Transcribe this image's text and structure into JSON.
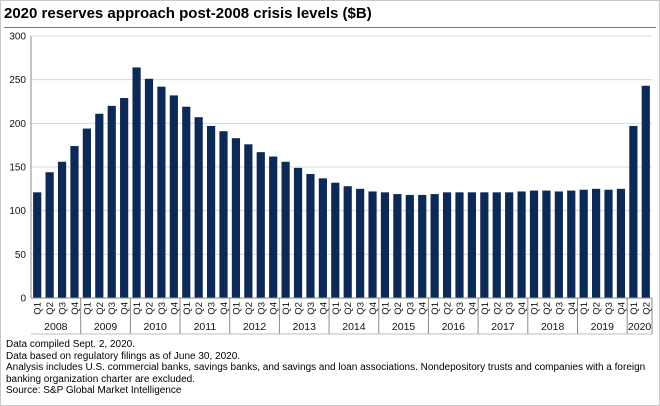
{
  "colors": {
    "bar": "#0d2a57",
    "grid": "#d8d8d8",
    "axis": "#8a8a8a",
    "text": "#111111",
    "border": "#c8c8c8"
  },
  "chart_data": {
    "type": "bar",
    "title": "2020 reserves approach post-2008 crisis levels ($B)",
    "xlabel": "",
    "ylabel": "",
    "ylim": [
      0,
      300
    ],
    "yticks": [
      0,
      50,
      100,
      150,
      200,
      250,
      300
    ],
    "grid": true,
    "legend": "none",
    "categories": [
      "Q1",
      "Q2",
      "Q3",
      "Q4",
      "Q1",
      "Q2",
      "Q3",
      "Q4",
      "Q1",
      "Q2",
      "Q3",
      "Q4",
      "Q1",
      "Q2",
      "Q3",
      "Q4",
      "Q1",
      "Q2",
      "Q3",
      "Q4",
      "Q1",
      "Q2",
      "Q3",
      "Q4",
      "Q1",
      "Q2",
      "Q3",
      "Q4",
      "Q1",
      "Q2",
      "Q3",
      "Q4",
      "Q1",
      "Q2",
      "Q3",
      "Q4",
      "Q1",
      "Q2",
      "Q3",
      "Q4",
      "Q1",
      "Q2",
      "Q3",
      "Q4",
      "Q1",
      "Q2",
      "Q3",
      "Q4",
      "Q1",
      "Q2"
    ],
    "years": [
      {
        "label": "2008",
        "count": 4
      },
      {
        "label": "2009",
        "count": 4
      },
      {
        "label": "2010",
        "count": 4
      },
      {
        "label": "2011",
        "count": 4
      },
      {
        "label": "2012",
        "count": 4
      },
      {
        "label": "2013",
        "count": 4
      },
      {
        "label": "2014",
        "count": 4
      },
      {
        "label": "2015",
        "count": 4
      },
      {
        "label": "2016",
        "count": 4
      },
      {
        "label": "2017",
        "count": 4
      },
      {
        "label": "2018",
        "count": 4
      },
      {
        "label": "2019",
        "count": 4
      },
      {
        "label": "2020",
        "count": 2
      }
    ],
    "values": [
      121,
      144,
      156,
      174,
      194,
      211,
      220,
      229,
      264,
      251,
      242,
      232,
      219,
      207,
      197,
      191,
      183,
      176,
      167,
      162,
      156,
      149,
      142,
      137,
      132,
      128,
      125,
      122,
      121,
      119,
      118,
      118,
      119,
      121,
      121,
      121,
      121,
      121,
      121,
      122,
      123,
      123,
      122,
      123,
      124,
      125,
      124,
      125,
      197,
      243
    ]
  },
  "notes": [
    "Data compiled Sept. 2, 2020.",
    "Data based on regulatory filings as of June 30, 2020.",
    "Analysis includes U.S. commercial banks, savings banks, and savings and loan associations. Nondepository trusts and companies with a foreign banking organization charter are excluded.",
    "Source: S&P Global Market Intelligence"
  ]
}
